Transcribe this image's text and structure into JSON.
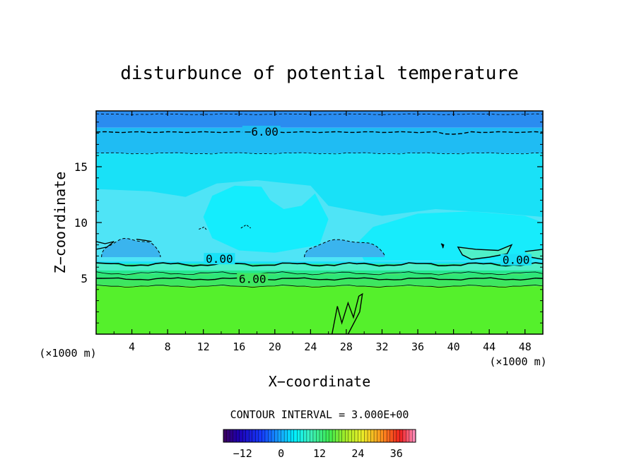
{
  "chart_data": {
    "type": "contour",
    "title": "disturbunce of potential temperature",
    "xlabel": "X−coordinate",
    "ylabel": "Z−coordinate",
    "x_unit": "(×1000 m)",
    "x_unit_right": "(×1000 m)",
    "xlim": [
      0,
      50
    ],
    "ylim": [
      0,
      20
    ],
    "x_ticks": [
      4,
      8,
      12,
      16,
      20,
      24,
      28,
      32,
      36,
      40,
      44,
      48
    ],
    "y_ticks": [
      5,
      10,
      15
    ],
    "contour_interval_label": "CONTOUR INTERVAL = 3.000E+00",
    "contour_labels": [
      {
        "text": "−6.00",
        "x": 18.5,
        "z": 18.1
      },
      {
        "text": "0.00",
        "x": 13.8,
        "z": 6.7
      },
      {
        "text": "0.00",
        "x": 47.0,
        "z": 6.6
      },
      {
        "text": "6.00",
        "x": 17.5,
        "z": 4.9
      }
    ],
    "colorbar": {
      "min": -18,
      "max": 42,
      "tick_labels": [
        "−12",
        "0",
        "12",
        "24",
        "36"
      ],
      "tick_values": [
        -12,
        0,
        12,
        24,
        36
      ]
    },
    "bands": [
      {
        "z0": 18.5,
        "z1": 20.0,
        "value": -9
      },
      {
        "z0": 16.2,
        "z1": 18.5,
        "value": -6
      },
      {
        "z0": 6.3,
        "z1": 16.2,
        "value": -3
      },
      {
        "z0": 5.4,
        "z1": 6.3,
        "value": 3
      },
      {
        "z0": 4.3,
        "z1": 5.4,
        "value": 6
      },
      {
        "z0": 0.0,
        "z1": 4.3,
        "value": 9
      }
    ]
  },
  "colors": {
    "v_m9": "#2a8cf0",
    "v_m6": "#1fbcf3",
    "v_m3": "#19e1f7",
    "v_m3_light": "#7be8f5",
    "v_m3_pale": "#00f0ff",
    "v_0": "#4ff0c8",
    "v_3": "#26e890",
    "v_6": "#3ee660",
    "v_9": "#55f02c",
    "pocket": "#3ab4ee"
  }
}
